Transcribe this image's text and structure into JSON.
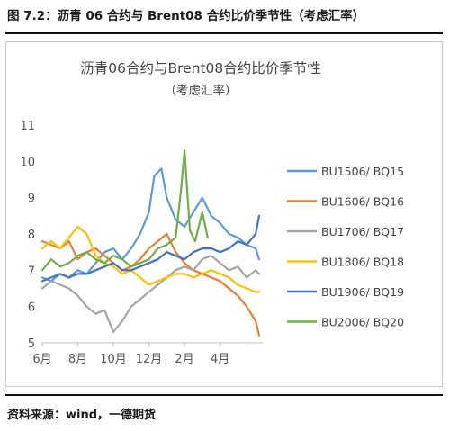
{
  "figure": {
    "caption": "图 7.2：沥青 06 合约与 Brent08 合约比价季节性（考虑汇率）",
    "source": "资料来源：wind，一德期货"
  },
  "chart_data": {
    "type": "line",
    "title": "沥青06合约与Brent08合约比价季节性",
    "subtitle": "（考虑汇率）",
    "xlabel": "",
    "ylabel": "",
    "ylim": [
      5,
      11
    ],
    "xlim": [
      0,
      12.4
    ],
    "yticks": [
      5,
      6,
      7,
      8,
      9,
      10,
      11
    ],
    "xticks": [
      {
        "pos": 0,
        "label": "6月"
      },
      {
        "pos": 2,
        "label": "8月"
      },
      {
        "pos": 4,
        "label": "10月"
      },
      {
        "pos": 6,
        "label": "12月"
      },
      {
        "pos": 8,
        "label": "2月"
      },
      {
        "pos": 10,
        "label": "4月"
      }
    ],
    "grid": false,
    "legend_position": "right",
    "series": [
      {
        "name": "BU1506/ BQ15",
        "color": "#5b9bd5",
        "x": [
          0,
          0.5,
          1,
          1.5,
          2,
          2.5,
          3,
          3.5,
          4,
          4.5,
          5,
          5.5,
          6,
          6.3,
          6.7,
          7,
          7.5,
          8,
          8.5,
          9,
          9.5,
          10,
          10.5,
          11,
          11.5,
          12,
          12.2
        ],
        "y": [
          6.8,
          6.7,
          6.9,
          6.8,
          7.0,
          6.9,
          7.2,
          7.5,
          7.6,
          7.3,
          7.6,
          8.0,
          8.6,
          9.6,
          9.8,
          9.0,
          8.4,
          8.2,
          8.6,
          9.0,
          8.5,
          8.3,
          8.0,
          7.9,
          7.7,
          7.6,
          7.3
        ]
      },
      {
        "name": "BU1606/ BQ16",
        "color": "#ed7d31",
        "x": [
          0,
          0.5,
          1,
          1.5,
          2,
          2.5,
          3,
          3.5,
          4,
          4.5,
          5,
          5.5,
          6,
          6.5,
          7,
          7.5,
          8,
          8.5,
          9,
          9.5,
          10,
          10.5,
          11,
          11.5,
          12,
          12.2
        ],
        "y": [
          7.8,
          7.7,
          7.6,
          7.8,
          7.3,
          7.5,
          7.6,
          7.4,
          7.2,
          7.0,
          7.1,
          7.3,
          7.6,
          7.8,
          8.0,
          7.5,
          7.2,
          7.0,
          6.9,
          6.8,
          6.7,
          6.5,
          6.3,
          6.0,
          5.6,
          5.2
        ]
      },
      {
        "name": "BU1706/ BQ17",
        "color": "#a5a5a5",
        "x": [
          0,
          0.5,
          1,
          1.5,
          2,
          2.5,
          3,
          3.5,
          4,
          4.5,
          5,
          5.5,
          6,
          6.5,
          7,
          7.5,
          8,
          8.5,
          9,
          9.5,
          10,
          10.5,
          11,
          11.5,
          12,
          12.2
        ],
        "y": [
          6.5,
          6.7,
          6.6,
          6.5,
          6.3,
          6.0,
          5.8,
          5.9,
          5.3,
          5.6,
          6.0,
          6.2,
          6.4,
          6.6,
          6.8,
          7.0,
          7.1,
          7.0,
          7.3,
          7.4,
          7.2,
          7.0,
          7.1,
          6.8,
          7.0,
          6.9
        ]
      },
      {
        "name": "BU1806/ BQ18",
        "color": "#ffc000",
        "x": [
          0,
          0.5,
          1,
          1.5,
          2,
          2.5,
          3,
          3.5,
          4,
          4.5,
          5,
          5.5,
          6,
          6.5,
          7,
          7.5,
          8,
          8.5,
          9,
          9.5,
          10,
          10.5,
          11,
          11.5,
          12,
          12.2
        ],
        "y": [
          7.6,
          7.8,
          7.6,
          7.9,
          8.2,
          8.0,
          7.4,
          7.2,
          7.1,
          6.9,
          7.0,
          6.8,
          6.6,
          6.7,
          6.8,
          6.9,
          6.9,
          6.8,
          6.9,
          7.0,
          6.9,
          6.8,
          6.6,
          6.5,
          6.4,
          6.4
        ]
      },
      {
        "name": "BU1906/ BQ19",
        "color": "#4472c4",
        "x": [
          0,
          0.5,
          1,
          1.5,
          2,
          2.5,
          3,
          3.5,
          4,
          4.5,
          5,
          5.5,
          6,
          6.5,
          7,
          7.5,
          8,
          8.5,
          9,
          9.5,
          10,
          10.5,
          11,
          11.5,
          12,
          12.2
        ],
        "y": [
          6.7,
          6.8,
          6.9,
          6.8,
          6.9,
          6.9,
          7.0,
          7.1,
          7.2,
          7.0,
          7.0,
          7.1,
          7.2,
          7.3,
          7.5,
          7.4,
          7.3,
          7.5,
          7.6,
          7.6,
          7.5,
          7.6,
          7.8,
          7.7,
          8.0,
          8.5
        ]
      },
      {
        "name": "BU2006/ BQ20",
        "color": "#70ad47",
        "x": [
          0,
          0.5,
          1,
          1.5,
          2,
          2.5,
          3,
          3.5,
          4,
          4.5,
          5,
          5.5,
          6,
          6.5,
          7,
          7.5,
          7.8,
          8.0,
          8.3,
          8.6,
          9.0,
          9.3
        ],
        "y": [
          7.0,
          7.3,
          7.1,
          7.2,
          7.4,
          7.5,
          7.3,
          7.2,
          7.4,
          7.3,
          7.1,
          7.2,
          7.3,
          7.6,
          7.7,
          7.9,
          9.2,
          10.3,
          8.1,
          7.8,
          8.6,
          7.9
        ]
      }
    ]
  }
}
